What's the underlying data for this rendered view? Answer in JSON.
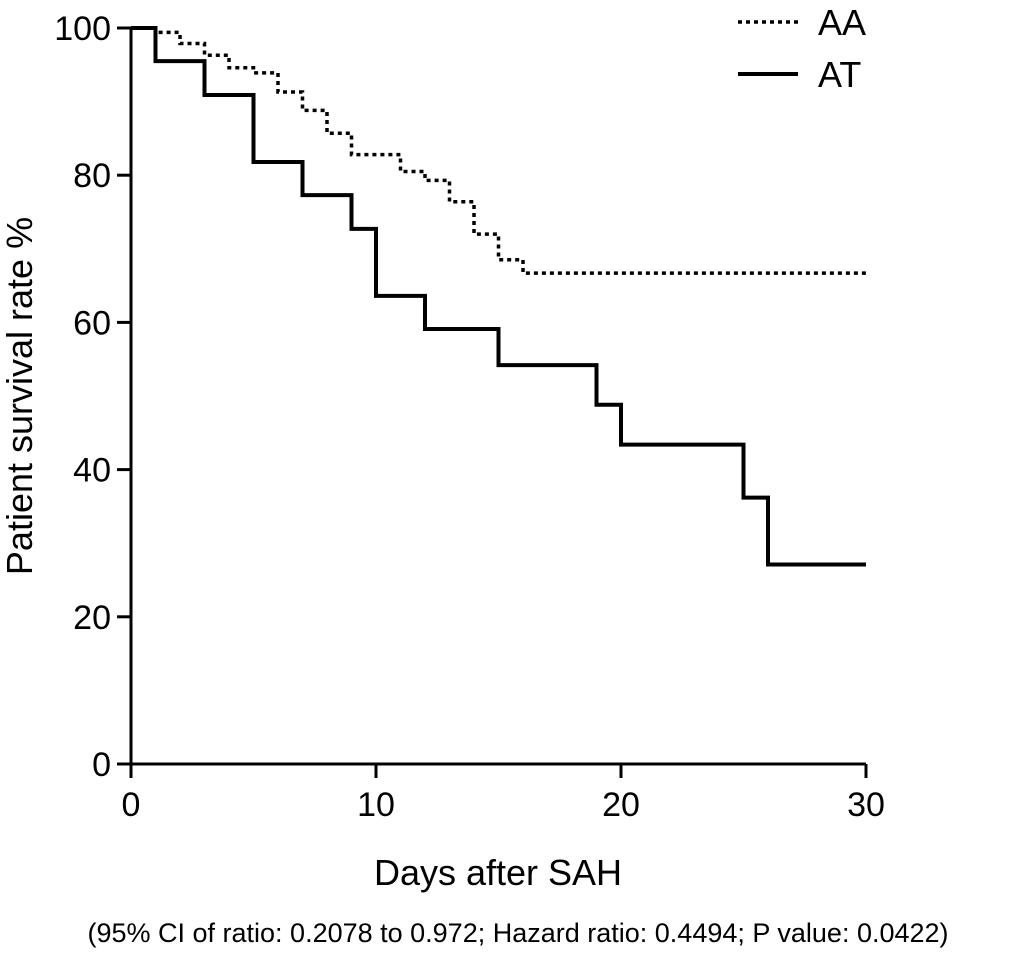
{
  "chart_data": {
    "type": "line",
    "title": "",
    "xlabel": "Days after SAH",
    "ylabel": "Patient survival rate %",
    "xlim": [
      0,
      30
    ],
    "ylim": [
      0,
      100
    ],
    "xticks": [
      0,
      10,
      20,
      30
    ],
    "yticks": [
      0,
      20,
      40,
      60,
      80,
      100
    ],
    "xtick_labels": [
      "0",
      "10",
      "20",
      "30"
    ],
    "ytick_labels": [
      "0",
      "20",
      "40",
      "60",
      "80",
      "100"
    ],
    "legend_position": "top-right",
    "step": true,
    "series": [
      {
        "name": "AA",
        "style": "dotted",
        "color": "#000000",
        "x": [
          0,
          1,
          2,
          3,
          4,
          5,
          6,
          7,
          8,
          9,
          11,
          12,
          13,
          14,
          15,
          16,
          30
        ],
        "y": [
          100,
          99.4,
          97.9,
          96.3,
          94.6,
          93.9,
          91.3,
          88.8,
          85.7,
          82.8,
          80.5,
          79.3,
          76.4,
          72,
          68.5,
          66.7,
          66.7
        ]
      },
      {
        "name": "AT",
        "style": "solid",
        "color": "#000000",
        "x": [
          0,
          1,
          3,
          5,
          7,
          9,
          10,
          12,
          15,
          19,
          20,
          25,
          26,
          30
        ],
        "y": [
          100,
          95.5,
          90.9,
          81.8,
          77.3,
          72.7,
          63.6,
          59.1,
          54.2,
          48.8,
          43.4,
          36.2,
          27.1,
          27.1
        ]
      }
    ],
    "caption": "(95% CI of ratio: 0.2078 to 0.972; Hazard ratio: 0.4494; P value: 0.0422)"
  }
}
